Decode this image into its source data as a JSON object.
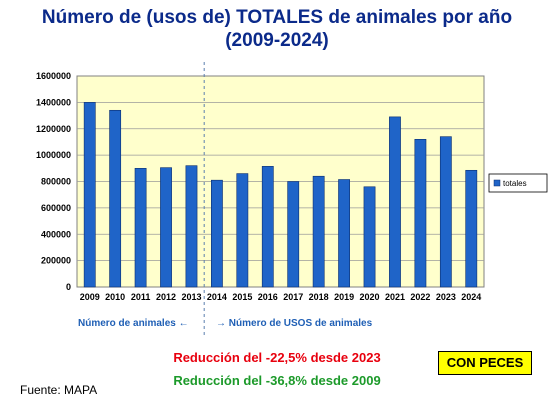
{
  "title": {
    "line1": "Número de (usos de) TOTALES de animales por año",
    "line2": "(2009-2024)"
  },
  "chart_data": {
    "type": "bar",
    "categories": [
      "2009",
      "2010",
      "2011",
      "2012",
      "2013",
      "2014",
      "2015",
      "2016",
      "2017",
      "2018",
      "2019",
      "2020",
      "2021",
      "2022",
      "2023",
      "2024"
    ],
    "series": [
      {
        "name": "totales",
        "values": [
          1400000,
          1340000,
          900000,
          905000,
          920000,
          810000,
          860000,
          915000,
          800000,
          840000,
          815000,
          760000,
          1290000,
          1120000,
          1140000,
          885000
        ]
      }
    ],
    "ylim": [
      0,
      1600000
    ],
    "yticks": [
      "0",
      "200000",
      "400000",
      "600000",
      "800000",
      "1000000",
      "1200000",
      "1400000",
      "1600000"
    ],
    "grid": true,
    "legend": "right"
  },
  "annotations": {
    "left_note": "Número de animales",
    "right_note": "Número de USOS de animales"
  },
  "reductions": {
    "line1": "Reducción del -22,5% desde 2023",
    "line2": "Reducción del -36,8% desde 2009"
  },
  "badge": "CON PECES",
  "source": "Fuente: MAPA",
  "colors": {
    "plot_bg": "#ffffcc",
    "bar": "#1f64c8",
    "bar_edge": "#0a2d6e",
    "title": "#0b2a8a",
    "reduction_red": "#e8000e",
    "reduction_green": "#1c9a2a",
    "note": "#1f5fb5"
  }
}
